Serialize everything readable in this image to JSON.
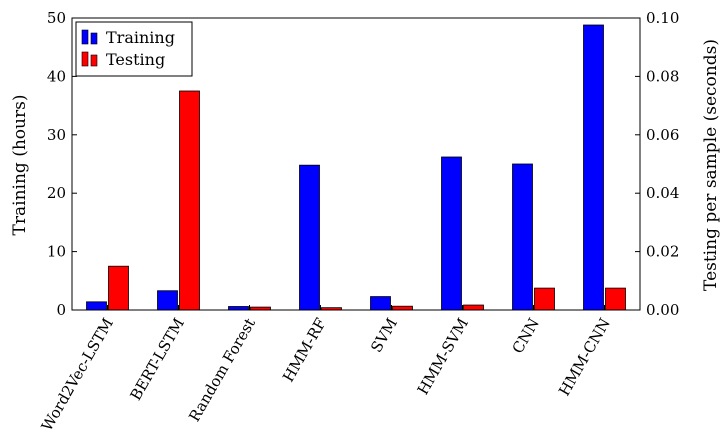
{
  "chart_data": {
    "type": "bar",
    "categories": [
      "Word2Vec-LSTM",
      "BERT-LSTM",
      "Random Forest",
      "HMM-RF",
      "SVM",
      "HMM-SVM",
      "CNN",
      "HMM-CNN"
    ],
    "series": [
      {
        "name": "Training",
        "axis": "left",
        "color": "#0000ff",
        "values": [
          1.4,
          3.3,
          0.6,
          24.8,
          2.3,
          26.2,
          25.0,
          48.8
        ]
      },
      {
        "name": "Testing",
        "axis": "right",
        "color": "#ff0000",
        "values": [
          0.015,
          0.075,
          0.001,
          0.0008,
          0.0013,
          0.0017,
          0.0075,
          0.0075
        ]
      }
    ],
    "ylabel": "Training (hours)",
    "ylabel_right": "Testing per sample (seconds)",
    "ylim": [
      0,
      50
    ],
    "ylim_right": [
      0,
      0.1
    ],
    "yticks": [
      "0",
      "10",
      "20",
      "30",
      "40",
      "50"
    ],
    "yticks_right": [
      "0.00",
      "0.02",
      "0.04",
      "0.06",
      "0.08",
      "0.10"
    ],
    "legend_position": "top-left",
    "grid": false
  }
}
